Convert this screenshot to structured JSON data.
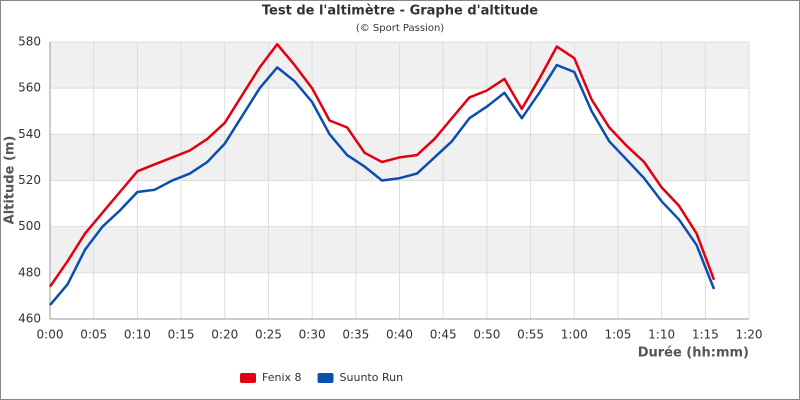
{
  "chart_data": {
    "type": "line",
    "title": "Test de l'altimètre - Graphe d'altitude",
    "subtitle": "(© Sport Passion)",
    "x_label": "Durée (hh:mm)",
    "y_label": "Altitude (m)",
    "x": [
      0,
      2,
      4,
      6,
      8,
      10,
      12,
      14,
      16,
      18,
      20,
      22,
      24,
      26,
      28,
      30,
      32,
      34,
      36,
      38,
      40,
      42,
      44,
      46,
      48,
      50,
      52,
      54,
      56,
      58,
      60,
      62,
      64,
      66,
      68,
      70,
      72,
      74,
      76
    ],
    "series": [
      {
        "name": "Fenix 8",
        "color": "#e0000f",
        "values": [
          474,
          485,
          497,
          506,
          515,
          524,
          527,
          530,
          533,
          538,
          545,
          557,
          569,
          579,
          570,
          560,
          546,
          543,
          532,
          528,
          530,
          531,
          538,
          547,
          556,
          559,
          564,
          551,
          564,
          578,
          573,
          555,
          543,
          535,
          528,
          517,
          509,
          497,
          477
        ]
      },
      {
        "name": "Suunto Run",
        "color": "#0a4eb0",
        "values": [
          466,
          475,
          490,
          500,
          507,
          515,
          516,
          520,
          523,
          528,
          536,
          548,
          560,
          569,
          563,
          554,
          540,
          531,
          526,
          520,
          521,
          523,
          530,
          537,
          547,
          552,
          558,
          547,
          558,
          570,
          567,
          550,
          537,
          529,
          521,
          511,
          503,
          492,
          473
        ]
      }
    ],
    "xlim": [
      0,
      80
    ],
    "xticks": [
      {
        "value": 0,
        "label": "0:00"
      },
      {
        "value": 5,
        "label": "0:05"
      },
      {
        "value": 10,
        "label": "0:10"
      },
      {
        "value": 15,
        "label": "0:15"
      },
      {
        "value": 20,
        "label": "0:20"
      },
      {
        "value": 25,
        "label": "0:25"
      },
      {
        "value": 30,
        "label": "0:30"
      },
      {
        "value": 35,
        "label": "0:35"
      },
      {
        "value": 40,
        "label": "0:40"
      },
      {
        "value": 45,
        "label": "0:45"
      },
      {
        "value": 50,
        "label": "0:50"
      },
      {
        "value": 55,
        "label": "0:55"
      },
      {
        "value": 60,
        "label": "1:00"
      },
      {
        "value": 65,
        "label": "1:05"
      },
      {
        "value": 70,
        "label": "1:10"
      },
      {
        "value": 75,
        "label": "1:15"
      },
      {
        "value": 80,
        "label": "1:20"
      }
    ],
    "ylim": [
      460,
      580
    ],
    "yticks": [
      460,
      480,
      500,
      520,
      540,
      560,
      580
    ],
    "grid": true,
    "legend": "bottom"
  }
}
